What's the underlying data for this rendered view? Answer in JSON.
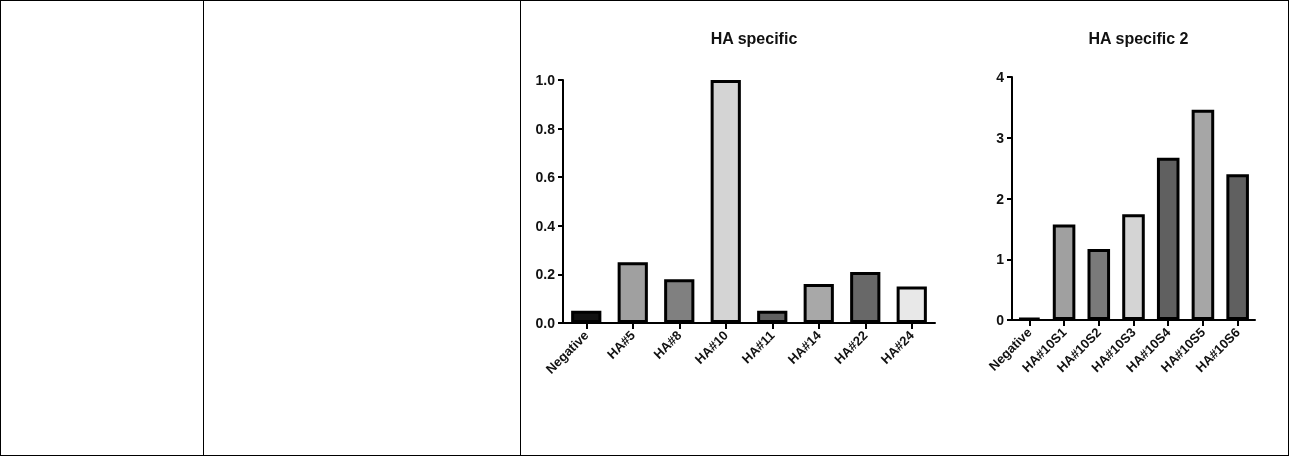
{
  "chart_data": [
    {
      "type": "bar",
      "title": "HA specific",
      "categories": [
        "Negative",
        "HA#5",
        "HA#8",
        "HA#10",
        "HA#11",
        "HA#14",
        "HA#22",
        "HA#24"
      ],
      "values": [
        0.05,
        0.25,
        0.18,
        1.0,
        0.05,
        0.16,
        0.21,
        0.15
      ],
      "colors": [
        "#111111",
        "#a0a0a0",
        "#808080",
        "#d4d4d4",
        "#606060",
        "#a8a8a8",
        "#686868",
        "#e8e8e8"
      ],
      "ylim": [
        0,
        1
      ],
      "yticks": [
        {
          "value": 0,
          "label": "0.0"
        },
        {
          "value": 0.2,
          "label": "0.2"
        },
        {
          "value": 0.4,
          "label": "0.4"
        },
        {
          "value": 0.6,
          "label": "0.6"
        },
        {
          "value": 0.8,
          "label": "0.8"
        },
        {
          "value": 1,
          "label": "1.0"
        }
      ],
      "grid": false
    },
    {
      "type": "bar",
      "title": "HA specific 2",
      "categories": [
        "Negative",
        "HA#10S1",
        "HA#10S2",
        "HA#10S3",
        "HA#10S4",
        "HA#10S5",
        "HA#10S6"
      ],
      "values": [
        0.03,
        1.57,
        1.17,
        1.74,
        2.67,
        3.46,
        2.4
      ],
      "colors": [
        "#000000",
        "#a0a0a0",
        "#7a7a7a",
        "#d4d4d4",
        "#606060",
        "#a6a6a6",
        "#606060"
      ],
      "ylim": [
        0,
        4
      ],
      "yticks": [
        0,
        1,
        2,
        3,
        4
      ],
      "grid": false
    }
  ]
}
